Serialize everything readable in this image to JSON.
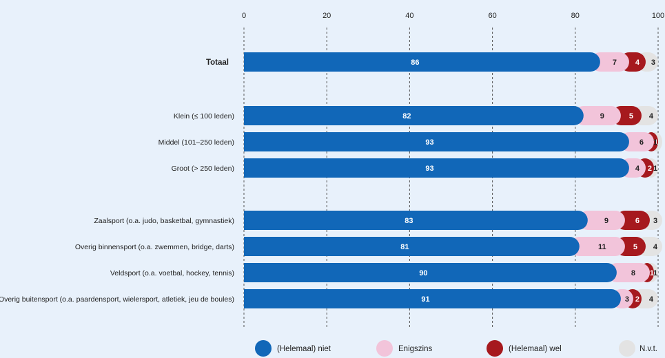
{
  "chart_data": {
    "type": "bar",
    "orientation": "horizontal",
    "stacked": true,
    "x_ticks": [
      "0",
      "20",
      "40",
      "60",
      "80",
      "100"
    ],
    "xlim": [
      0,
      100
    ],
    "grid": "vertical dashed",
    "legend_position": "bottom",
    "categories": [
      "Totaal",
      "Klein (≤ 100 leden)",
      "Middel (101–250 leden)",
      "Groot (> 250 leden)",
      "Zaalsport (o.a. judo, basketbal, gymnastiek)",
      "Overig binnensport (o.a. zwemmen, bridge, darts)",
      "Veldsport (o.a. voetbal, hockey, tennis)",
      "Overig buitensport (o.a. paardensport, wielersport, atletiek, jeu de boules)"
    ],
    "series": [
      {
        "name": "(Helemaal) niet",
        "color": "#1167b8",
        "label_color": "#ffffff",
        "values": [
          86,
          82,
          93,
          93,
          83,
          81,
          90,
          91
        ]
      },
      {
        "name": "Enigszins",
        "color": "#f2c4da",
        "label_color": "#222222",
        "values": [
          7,
          9,
          6,
          4,
          9,
          11,
          8,
          3
        ]
      },
      {
        "name": "(Helemaal) wel",
        "color": "#a6191e",
        "label_color": "#ffffff",
        "values": [
          4,
          5,
          1,
          2,
          6,
          5,
          1,
          2
        ]
      },
      {
        "name": "N.v.t.",
        "color": "#e3e3e3",
        "label_color": "#222222",
        "values": [
          3,
          4,
          1,
          1,
          3,
          4,
          1,
          4
        ]
      }
    ]
  }
}
